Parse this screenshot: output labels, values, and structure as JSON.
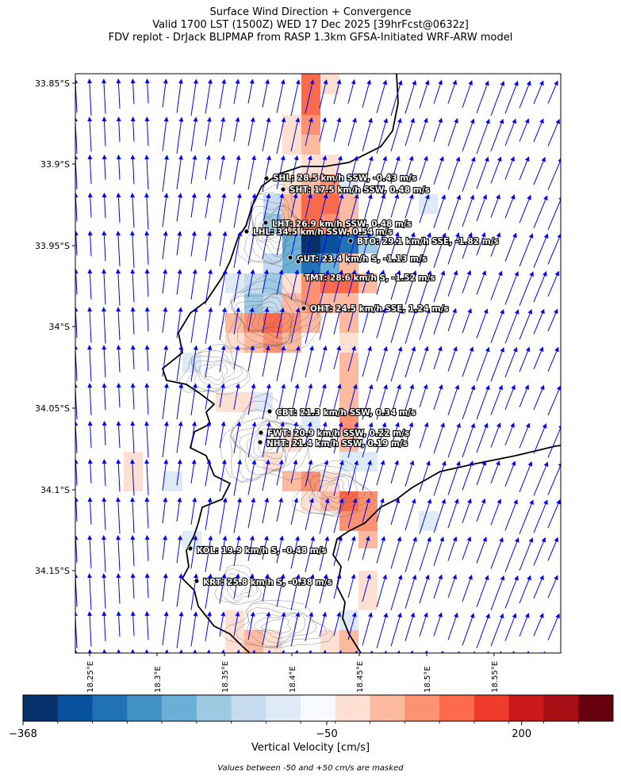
{
  "title": {
    "line1": "Surface Wind Direction + Convergence",
    "line2": "Valid 1700 LST (1500Z) WED 17 Dec 2025 [39hrFcst@0632z]",
    "line3": "FDV replot - DrJack BLIPMAP from RASP 1.3km GFSA-Initiated WRF-ARW model"
  },
  "axes": {
    "lat_labels": [
      "33.85°S",
      "33.9°S",
      "33.95°S",
      "34°S",
      "34.05°S",
      "34.1°S",
      "34.15°S"
    ],
    "lon_labels": [
      "18.25°E",
      "18.3°E",
      "18.35°E",
      "18.4°E",
      "18.45°E",
      "18.5°E",
      "18.55°E"
    ]
  },
  "colorbar": {
    "label": "Vertical Velocity [cm/s]",
    "tick_labels": [
      "−368",
      "−50",
      "200"
    ],
    "colors": [
      "#08306b",
      "#08519c",
      "#2171b5",
      "#4292c6",
      "#6baed6",
      "#9ecae1",
      "#c6dbef",
      "#deebf7",
      "#f7fbff",
      "#fee0d2",
      "#fcbba1",
      "#fc9272",
      "#fb6a4a",
      "#ef3b2c",
      "#cb181d",
      "#a50f15",
      "#67000d"
    ]
  },
  "mask_note": "Values between -50 and +50 cm/s are masked",
  "stations": [
    {
      "id": "SHL",
      "label": "SHL: 28.5 km/h SSW, -0.43 m/s"
    },
    {
      "id": "SHT",
      "label": "SHT: 17.5 km/h SSW, 0.48 m/s"
    },
    {
      "id": "LHT",
      "label": "LHT: 26.9 km/h SSW, 0.48 m/s"
    },
    {
      "id": "LHL",
      "label": "LHL: 34.5 km/h SSW, 0.54 m/s"
    },
    {
      "id": "BTO",
      "label": "BTO: 29.1 km/h SSE, -1.82 m/s"
    },
    {
      "id": "GUT",
      "label": "GUT: 23.4 km/h S, -1.13 m/s"
    },
    {
      "id": "TMT",
      "label": "TMT: 28.6 km/h S, -1.52 m/s"
    },
    {
      "id": "OHT",
      "label": "OHT: 24.5 km/h SSE, 1.24 m/s"
    },
    {
      "id": "CBT",
      "label": "CBT: 21.3 km/h SSW, 0.34 m/s"
    },
    {
      "id": "FWT",
      "label": "FWT: 20.9 km/h SSW, 0.22 m/s"
    },
    {
      "id": "NHT",
      "label": "NHT: 21.4 km/h SSW, 0.19 m/s"
    },
    {
      "id": "KOL",
      "label": "KOL: 19.9 km/h S, -0.48 m/s"
    },
    {
      "id": "KRT",
      "label": "KRT: 25.8 km/h S, -0.38 m/s"
    }
  ],
  "colors": {
    "wind_vectors": "#0000ff",
    "coastline": "#000000"
  }
}
